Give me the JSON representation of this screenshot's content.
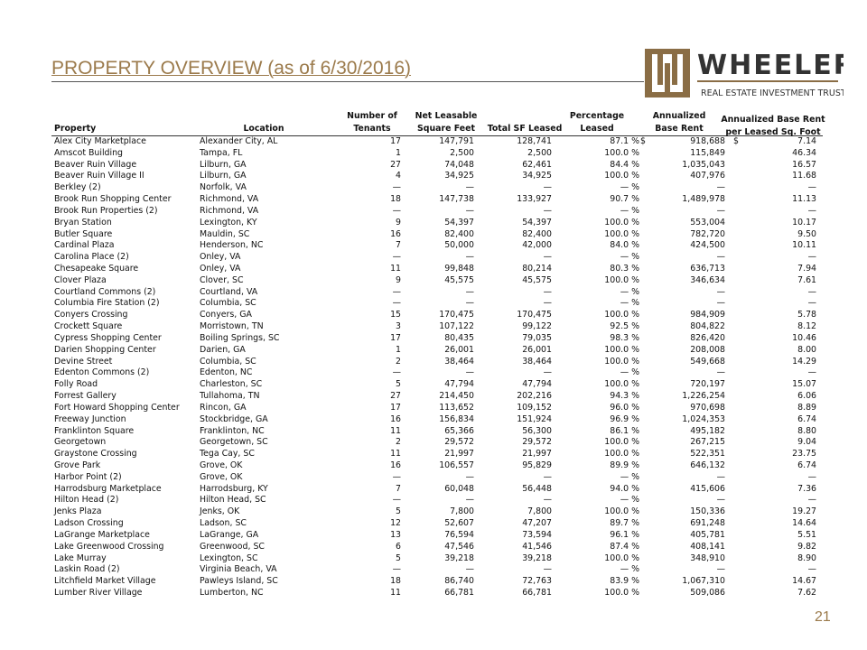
{
  "header": {
    "title": "PROPERTY OVERVIEW (as of 6/30/2016)",
    "logo_name": "WHEELER",
    "logo_tagline": "REAL ESTATE INVESTMENT TRUST"
  },
  "table": {
    "columns": [
      [
        "Property"
      ],
      [
        "Location"
      ],
      [
        "Number of",
        "Tenants"
      ],
      [
        "Net Leasable",
        "Square Feet"
      ],
      [
        "Total SF Leased"
      ],
      [
        "Percentage",
        "Leased"
      ],
      [
        "Annualized",
        "Base Rent"
      ],
      [
        "Annualized Base Rent",
        "per Leased Sq. Foot"
      ]
    ],
    "dollar_sign": "$",
    "rows": [
      [
        "Alex City Marketplace",
        "Alexander City, AL",
        "17",
        "147,791",
        "128,741",
        "87.1 %",
        "918,688",
        "7.14"
      ],
      [
        "Amscot Building",
        "Tampa, FL",
        "1",
        "2,500",
        "2,500",
        "100.0 %",
        "115,849",
        "46.34"
      ],
      [
        "Beaver Ruin Village",
        "Lilburn, GA",
        "27",
        "74,048",
        "62,461",
        "84.4 %",
        "1,035,043",
        "16.57"
      ],
      [
        "Beaver Ruin Village II",
        "Lilburn, GA",
        "4",
        "34,925",
        "34,925",
        "100.0 %",
        "407,976",
        "11.68"
      ],
      [
        "Berkley (2)",
        "Norfolk, VA",
        "—",
        "—",
        "—",
        "— %",
        "—",
        "—"
      ],
      [
        "Brook Run Shopping Center",
        "Richmond, VA",
        "18",
        "147,738",
        "133,927",
        "90.7 %",
        "1,489,978",
        "11.13"
      ],
      [
        "Brook Run Properties (2)",
        "Richmond, VA",
        "—",
        "—",
        "—",
        "— %",
        "—",
        "—"
      ],
      [
        "Bryan Station",
        "Lexington, KY",
        "9",
        "54,397",
        "54,397",
        "100.0 %",
        "553,004",
        "10.17"
      ],
      [
        "Butler Square",
        "Mauldin, SC",
        "16",
        "82,400",
        "82,400",
        "100.0 %",
        "782,720",
        "9.50"
      ],
      [
        "Cardinal Plaza",
        "Henderson,  NC",
        "7",
        "50,000",
        "42,000",
        "84.0 %",
        "424,500",
        "10.11"
      ],
      [
        "Carolina Place (2)",
        "Onley, VA",
        "—",
        "—",
        "—",
        "— %",
        "—",
        "—"
      ],
      [
        "Chesapeake Square",
        "Onley, VA",
        "11",
        "99,848",
        "80,214",
        "80.3 %",
        "636,713",
        "7.94"
      ],
      [
        "Clover Plaza",
        "Clover, SC",
        "9",
        "45,575",
        "45,575",
        "100.0 %",
        "346,634",
        "7.61"
      ],
      [
        "Courtland Commons (2)",
        "Courtland, VA",
        "—",
        "—",
        "—",
        "— %",
        "—",
        "—"
      ],
      [
        "Columbia Fire Station (2)",
        "Columbia, SC",
        "—",
        "—",
        "—",
        "— %",
        "—",
        "—"
      ],
      [
        "Conyers Crossing",
        "Conyers, GA",
        "15",
        "170,475",
        "170,475",
        "100.0 %",
        "984,909",
        "5.78"
      ],
      [
        "Crockett Square",
        "Morristown, TN",
        "3",
        "107,122",
        "99,122",
        "92.5 %",
        "804,822",
        "8.12"
      ],
      [
        "Cypress Shopping Center",
        "Boiling Springs, SC",
        "17",
        "80,435",
        "79,035",
        "98.3 %",
        "826,420",
        "10.46"
      ],
      [
        "Darien Shopping Center",
        "Darien, GA",
        "1",
        "26,001",
        "26,001",
        "100.0 %",
        "208,008",
        "8.00"
      ],
      [
        "Devine Street",
        "Columbia, SC",
        "2",
        "38,464",
        "38,464",
        "100.0 %",
        "549,668",
        "14.29"
      ],
      [
        "Edenton Commons (2)",
        "Edenton, NC",
        "—",
        "—",
        "—",
        "— %",
        "—",
        "—"
      ],
      [
        "Folly Road",
        "Charleston, SC",
        "5",
        "47,794",
        "47,794",
        "100.0 %",
        "720,197",
        "15.07"
      ],
      [
        "Forrest Gallery",
        "Tullahoma, TN",
        "27",
        "214,450",
        "202,216",
        "94.3 %",
        "1,226,254",
        "6.06"
      ],
      [
        "Fort Howard Shopping Center",
        "Rincon, GA",
        "17",
        "113,652",
        "109,152",
        "96.0 %",
        "970,698",
        "8.89"
      ],
      [
        "Freeway Junction",
        "Stockbridge, GA",
        "16",
        "156,834",
        "151,924",
        "96.9 %",
        "1,024,353",
        "6.74"
      ],
      [
        "Franklinton Square",
        "Franklinton, NC",
        "11",
        "65,366",
        "56,300",
        "86.1 %",
        "495,182",
        "8.80"
      ],
      [
        "Georgetown",
        "Georgetown, SC",
        "2",
        "29,572",
        "29,572",
        "100.0 %",
        "267,215",
        "9.04"
      ],
      [
        "Graystone Crossing",
        "Tega Cay, SC",
        "11",
        "21,997",
        "21,997",
        "100.0 %",
        "522,351",
        "23.75"
      ],
      [
        "Grove Park",
        "Grove, OK",
        "16",
        "106,557",
        "95,829",
        "89.9 %",
        "646,132",
        "6.74"
      ],
      [
        "Harbor Point (2)",
        "Grove, OK",
        "—",
        "—",
        "—",
        "— %",
        "—",
        "—"
      ],
      [
        "Harrodsburg Marketplace",
        "Harrodsburg, KY",
        "7",
        "60,048",
        "56,448",
        "94.0 %",
        "415,606",
        "7.36"
      ],
      [
        "Hilton Head (2)",
        "Hilton Head, SC",
        "—",
        "—",
        "—",
        "— %",
        "—",
        "—"
      ],
      [
        "Jenks Plaza",
        "Jenks, OK",
        "5",
        "7,800",
        "7,800",
        "100.0 %",
        "150,336",
        "19.27"
      ],
      [
        "Ladson Crossing",
        "Ladson, SC",
        "12",
        "52,607",
        "47,207",
        "89.7 %",
        "691,248",
        "14.64"
      ],
      [
        "LaGrange Marketplace",
        "LaGrange, GA",
        "13",
        "76,594",
        "73,594",
        "96.1 %",
        "405,781",
        "5.51"
      ],
      [
        "Lake Greenwood Crossing",
        "Greenwood, SC",
        "6",
        "47,546",
        "41,546",
        "87.4 %",
        "408,141",
        "9.82"
      ],
      [
        "Lake Murray",
        "Lexington, SC",
        "5",
        "39,218",
        "39,218",
        "100.0 %",
        "348,910",
        "8.90"
      ],
      [
        "Laskin Road (2)",
        "Virginia Beach, VA",
        "—",
        "—",
        "—",
        "— %",
        "—",
        "—"
      ],
      [
        "Litchfield Market Village",
        "Pawleys Island, SC",
        "18",
        "86,740",
        "72,763",
        "83.9 %",
        "1,067,310",
        "14.67"
      ],
      [
        "Lumber River Village",
        "Lumberton, NC",
        "11",
        "66,781",
        "66,781",
        "100.0 %",
        "509,086",
        "7.62"
      ]
    ]
  },
  "footer": {
    "page_number": "21"
  }
}
